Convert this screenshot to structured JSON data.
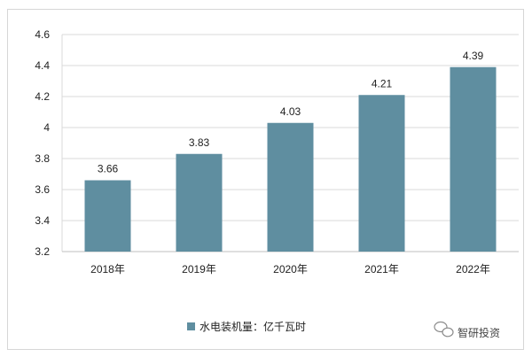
{
  "chart_data": {
    "type": "bar",
    "categories": [
      "2018年",
      "2019年",
      "2020年",
      "2021年",
      "2022年"
    ],
    "series": [
      {
        "name": "水电装机量：亿千瓦时",
        "values": [
          3.66,
          3.83,
          4.03,
          4.21,
          4.39
        ]
      }
    ],
    "data_labels": [
      "3.66",
      "3.83",
      "4.03",
      "4.21",
      "4.39"
    ],
    "y_ticks": [
      "3.2",
      "3.4",
      "3.6",
      "3.8",
      "4",
      "4.2",
      "4.4",
      "4.6"
    ],
    "ylim": [
      3.2,
      4.6
    ],
    "grid": true,
    "legend_position": "bottom-center",
    "bar_color": "#5f8ea0"
  },
  "watermark": {
    "text": "智研投资",
    "icon": "wechat-icon"
  }
}
